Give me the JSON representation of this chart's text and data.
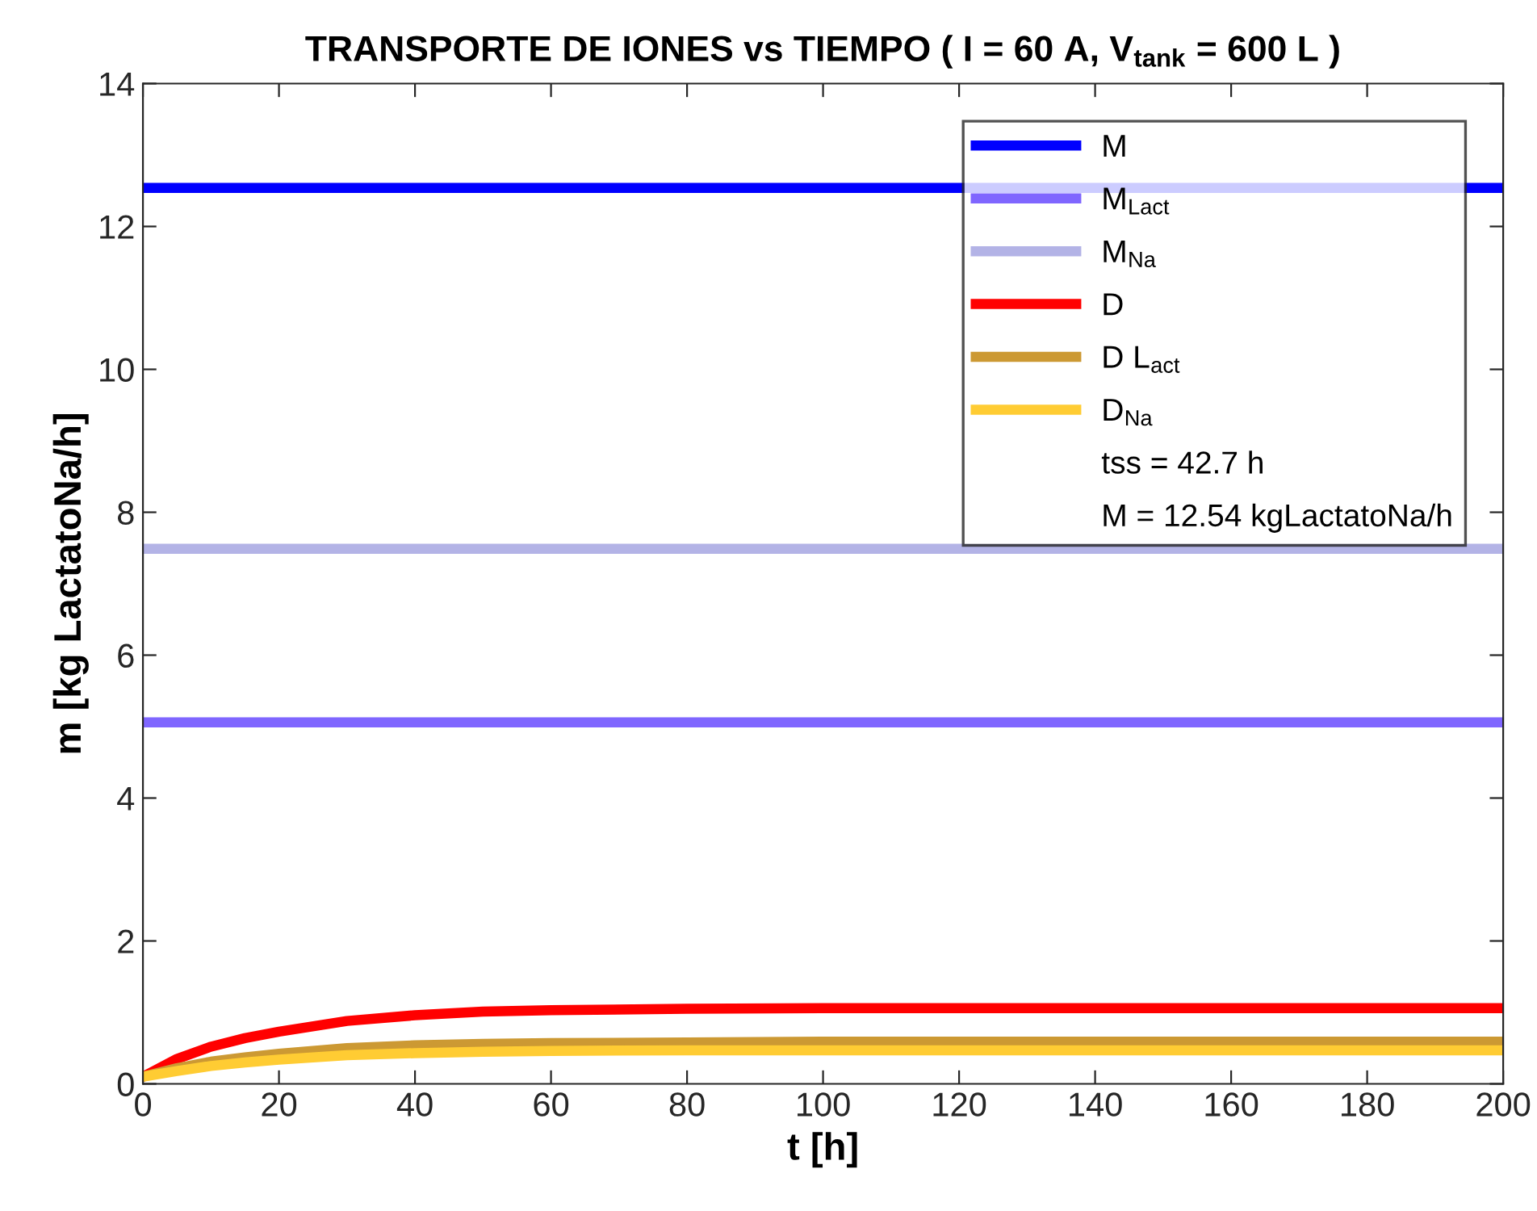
{
  "chart_data": {
    "type": "line",
    "title": "TRANSPORTE DE IONES vs TIEMPO ( I = 60 A, V$_{tank}$ = 600 L )",
    "xlabel": "t [h]",
    "ylabel": "m [kg LactatoNa/h]",
    "xlim": [
      0,
      200
    ],
    "xticks": [
      0,
      20,
      40,
      60,
      80,
      100,
      120,
      140,
      160,
      180,
      200
    ],
    "ylim": [
      0,
      14
    ],
    "yticks": [
      0,
      2,
      4,
      6,
      8,
      10,
      12,
      14
    ],
    "grid": false,
    "legend": "top right",
    "line_style": "solid",
    "marker": "none",
    "annotations": [
      "tss = 42.7 h",
      "M = 12.54 kgLactatoNa/h"
    ],
    "series": [
      {
        "name": "M",
        "color": "#0000ff",
        "x": [
          0,
          200
        ],
        "values": [
          12.54,
          12.54
        ]
      },
      {
        "name": "M$_{Lact}$",
        "color": "#7f66ff",
        "x": [
          0,
          200
        ],
        "values": [
          5.06,
          5.06
        ]
      },
      {
        "name": "M$_{Na}$",
        "color": "#b3b3e6",
        "x": [
          0,
          200
        ],
        "values": [
          7.49,
          7.49
        ]
      },
      {
        "name": "D",
        "color": "#ff0000",
        "x": [
          0,
          5,
          10,
          15,
          20,
          30,
          40,
          50,
          60,
          80,
          100,
          150,
          200
        ],
        "values": [
          0.1,
          0.35,
          0.52,
          0.64,
          0.73,
          0.88,
          0.96,
          1.01,
          1.03,
          1.05,
          1.06,
          1.06,
          1.06
        ]
      },
      {
        "name": "D L$_{act}$",
        "color": "#cc9933",
        "x": [
          0,
          5,
          10,
          15,
          20,
          30,
          40,
          50,
          60,
          80,
          100,
          150,
          200
        ],
        "values": [
          0.1,
          0.22,
          0.31,
          0.37,
          0.42,
          0.5,
          0.54,
          0.56,
          0.57,
          0.58,
          0.59,
          0.59,
          0.59
        ]
      },
      {
        "name": "D$_{Na}$",
        "color": "#ffcc33",
        "x": [
          0,
          5,
          10,
          15,
          20,
          30,
          40,
          50,
          60,
          80,
          100,
          150,
          200
        ],
        "values": [
          0.1,
          0.18,
          0.25,
          0.3,
          0.34,
          0.4,
          0.43,
          0.45,
          0.46,
          0.47,
          0.47,
          0.47,
          0.47
        ]
      }
    ]
  }
}
